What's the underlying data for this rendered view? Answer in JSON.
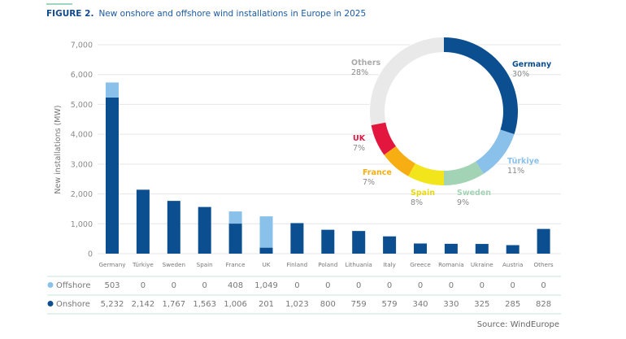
{
  "figure_label": "FIGURE 2.",
  "title": "New onshore and offshore wind installations in Europe in 2025",
  "source": "Source: WindEurope",
  "chart_data": [
    {
      "type": "bar",
      "stacked": true,
      "ylabel": "New installations (MW)",
      "ylim": [
        0,
        7000
      ],
      "yticks": [
        "0",
        "1,000",
        "2,000",
        "3,000",
        "4,000",
        "5,000",
        "6,000",
        "7,000"
      ],
      "grid": true,
      "categories": [
        "Germany",
        "Türkiye",
        "Sweden",
        "Spain",
        "France",
        "UK",
        "Finland",
        "Poland",
        "Lithuania",
        "Italy",
        "Greece",
        "Romania",
        "Ukraine",
        "Austria",
        "Others"
      ],
      "series": [
        {
          "name": "Onshore",
          "color": "#0b4f91",
          "values": [
            5232,
            2142,
            1767,
            1563,
            1006,
            201,
            1023,
            800,
            759,
            579,
            340,
            330,
            325,
            285,
            828
          ],
          "labels": [
            "5,232",
            "2,142",
            "1,767",
            "1,563",
            "1,006",
            "201",
            "1,023",
            "800",
            "759",
            "579",
            "340",
            "330",
            "325",
            "285",
            "828"
          ]
        },
        {
          "name": "Offshore",
          "color": "#89c1ea",
          "values": [
            503,
            0,
            0,
            0,
            408,
            1049,
            0,
            0,
            0,
            0,
            0,
            0,
            0,
            0,
            0
          ],
          "labels": [
            "503",
            "0",
            "0",
            "0",
            "408",
            "1,049",
            "0",
            "0",
            "0",
            "0",
            "0",
            "0",
            "0",
            "0",
            "0"
          ]
        }
      ]
    },
    {
      "type": "pie",
      "donut": true,
      "slices": [
        {
          "label": "Germany",
          "pct": "30%",
          "value": 30,
          "color": "#0b4f91"
        },
        {
          "label": "Türkiye",
          "pct": "11%",
          "value": 11,
          "color": "#89c1ea"
        },
        {
          "label": "Sweden",
          "pct": "9%",
          "value": 9,
          "color": "#a3d3b5"
        },
        {
          "label": "Spain",
          "pct": "8%",
          "value": 8,
          "color": "#f3e51b"
        },
        {
          "label": "France",
          "pct": "7%",
          "value": 7,
          "color": "#f6ae12"
        },
        {
          "label": "UK",
          "pct": "7%",
          "value": 7,
          "color": "#e2163f"
        },
        {
          "label": "Others",
          "pct": "28%",
          "value": 28,
          "color": "#e9e9e9"
        }
      ]
    }
  ]
}
